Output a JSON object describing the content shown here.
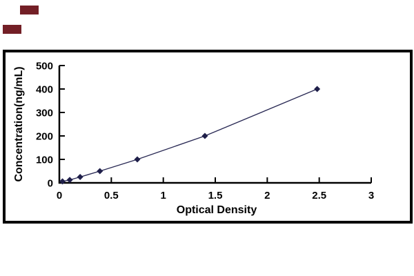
{
  "watermark": {
    "color": "#731f26"
  },
  "chart_data": {
    "type": "line",
    "title": "",
    "xlabel": "Optical Density",
    "ylabel": "Concentration(ng/mL)",
    "xlim": [
      0,
      3
    ],
    "ylim": [
      0,
      500
    ],
    "xticks": {
      "values": [
        0,
        0.5,
        1,
        1.5,
        2,
        2.5,
        3
      ],
      "labels": [
        "0",
        "0.5",
        "1",
        "1.5",
        "2",
        "2.5",
        "3"
      ]
    },
    "yticks": {
      "values": [
        0,
        100,
        200,
        300,
        400,
        500
      ],
      "labels": [
        "0",
        "100",
        "200",
        "300",
        "400",
        "500"
      ]
    },
    "points": [
      {
        "od": 0.03,
        "conc": 6.25
      },
      {
        "od": 0.1,
        "conc": 12.5
      },
      {
        "od": 0.2,
        "conc": 25
      },
      {
        "od": 0.39,
        "conc": 50
      },
      {
        "od": 0.75,
        "conc": 100
      },
      {
        "od": 1.4,
        "conc": 200
      },
      {
        "od": 2.48,
        "conc": 400
      }
    ],
    "grid": false,
    "legend": false,
    "marker": "diamond",
    "line_color": "#2a2a55",
    "marker_color": "#1f1f4a",
    "axis_color": "#000000",
    "frame_color": "#000000",
    "text_color": "#000000",
    "background_color": "#ffffff"
  }
}
